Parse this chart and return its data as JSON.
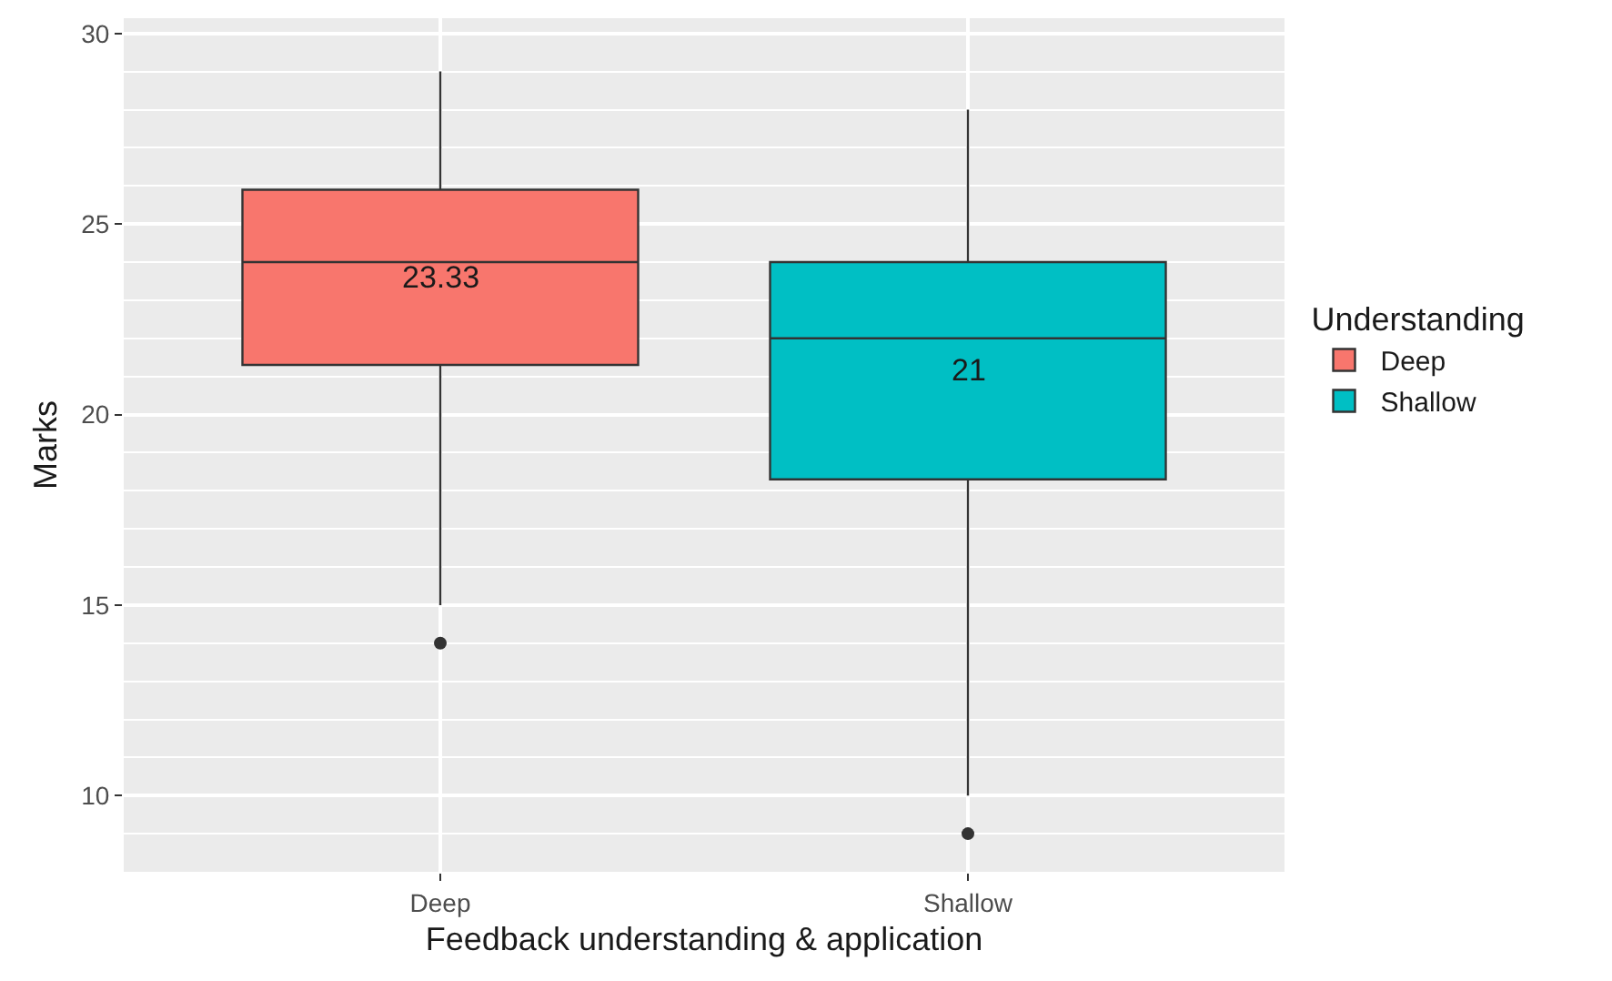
{
  "chart_data": {
    "type": "box",
    "xlabel": "Feedback understanding & application",
    "ylabel": "Marks",
    "legend_title": "Understanding",
    "categories": [
      "Deep",
      "Shallow"
    ],
    "series": [
      {
        "name": "Deep",
        "color": "#f8766d",
        "boxes": [
          {
            "low": 15,
            "q1": 21.3,
            "median": 24,
            "q3": 25.9,
            "high": 29,
            "outliers": [
              14
            ]
          },
          null
        ]
      },
      {
        "name": "Shallow",
        "color": "#00bfc4",
        "boxes": [
          null,
          {
            "low": 10,
            "q1": 18.3,
            "median": 22,
            "q3": 24,
            "high": 28,
            "outliers": [
              9
            ]
          }
        ]
      }
    ],
    "annotations": [
      "23.33",
      "21"
    ],
    "ylim": [
      8,
      30.4
    ],
    "yticks": [
      10,
      15,
      20,
      25,
      30
    ],
    "grid": true,
    "legend": "right"
  }
}
